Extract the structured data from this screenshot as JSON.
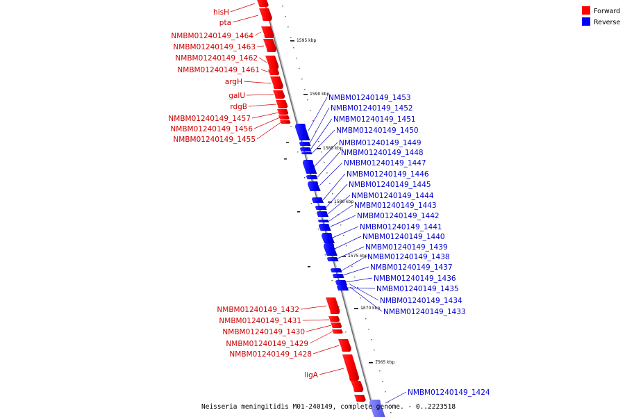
{
  "legend": {
    "forward_label": "Forward",
    "reverse_label": "Reverse",
    "forward_color": "#ff0000",
    "reverse_color": "#0000ff"
  },
  "colors": {
    "label_forward": "#cc0000",
    "label_reverse": "#0000cc",
    "axis": "#777777"
  },
  "caption": "Neisseria meningitidis M01-240149, complete genome. - 0..2223518",
  "ticks": [
    "1595 kbp",
    "1590 kbp",
    "1585 kbp",
    "1580 kbp",
    "1575 kbp",
    "1570 kbp",
    "1565 kbp"
  ],
  "forward_genes": [
    "hisH",
    "pta",
    "NMBM01240149_1464",
    "NMBM01240149_1463",
    "NMBM01240149_1462",
    "NMBM01240149_1461",
    "argH",
    "galU",
    "rdgB",
    "NMBM01240149_1457",
    "NMBM01240149_1456",
    "NMBM01240149_1455",
    "NMBM01240149_1432",
    "NMBM01240149_1431",
    "NMBM01240149_1430",
    "NMBM01240149_1429",
    "NMBM01240149_1428",
    "ligA"
  ],
  "reverse_genes": [
    "NMBM01240149_1453",
    "NMBM01240149_1452",
    "NMBM01240149_1451",
    "NMBM01240149_1450",
    "NMBM01240149_1449",
    "NMBM01240149_1448",
    "NMBM01240149_1447",
    "NMBM01240149_1446",
    "NMBM01240149_1445",
    "NMBM01240149_1444",
    "NMBM01240149_1443",
    "NMBM01240149_1442",
    "NMBM01240149_1441",
    "NMBM01240149_1440",
    "NMBM01240149_1439",
    "NMBM01240149_1438",
    "NMBM01240149_1437",
    "NMBM01240149_1436",
    "NMBM01240149_1435",
    "NMBM01240149_1434",
    "NMBM01240149_1433",
    "NMBM01240149_1424"
  ]
}
